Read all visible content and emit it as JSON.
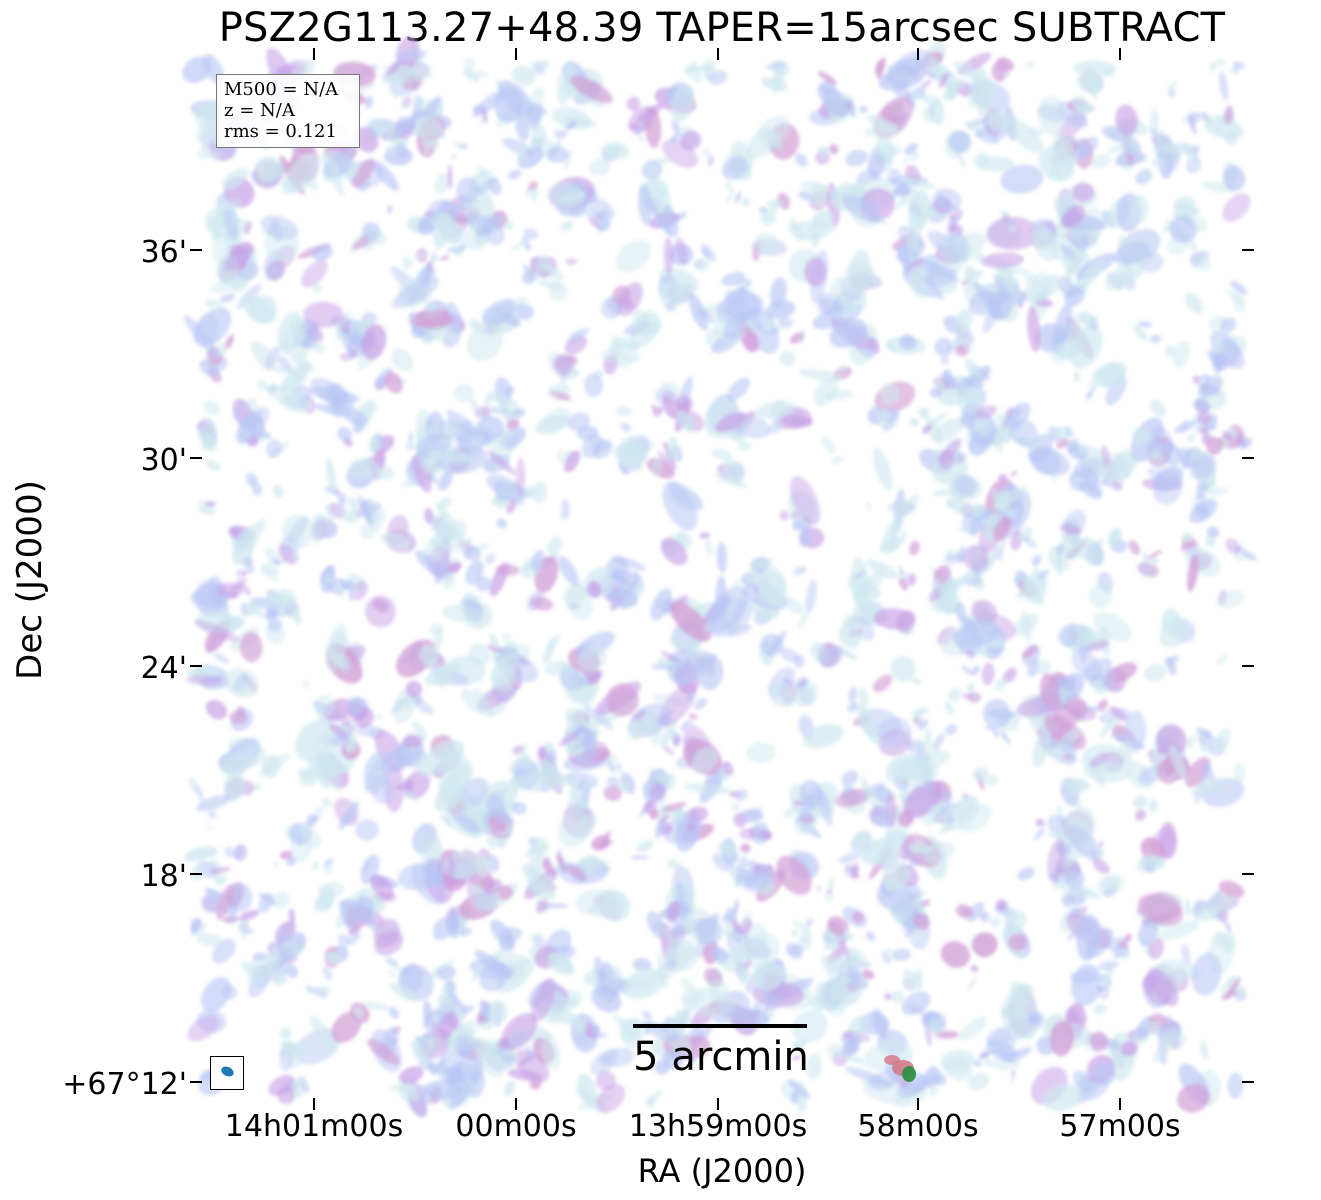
{
  "title": "PSZ2G113.27+48.39 TAPER=15arcsec SUBTRACT",
  "legend": {
    "line1": "M500 = N/A",
    "line2": "z = N/A",
    "line3": "rms = 0.121"
  },
  "axes": {
    "xlabel": "RA (J2000)",
    "ylabel": "Dec (J2000)",
    "xticks": [
      "14h01m00s",
      "00m00s",
      "13h59m00s",
      "58m00s",
      "57m00s"
    ],
    "yticks": [
      "36'",
      "30'",
      "24'",
      "18'",
      "+67°12'"
    ]
  },
  "scalebar": {
    "label": "5 arcmin"
  },
  "colors": {
    "noise_light": "#cfe8ef",
    "noise_blue": "#b9c7f5",
    "noise_violet": "#c7a0e6",
    "noise_magenta": "#d3a0d7",
    "source_red": "#d37b8c",
    "source_green": "#2f8f46",
    "beam": "#1f77b4"
  }
}
